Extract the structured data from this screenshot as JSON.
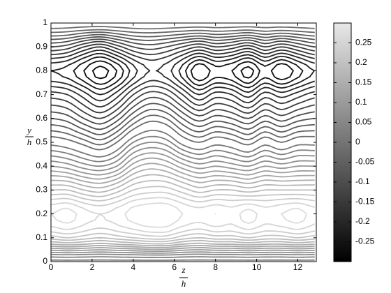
{
  "chart_data": {
    "type": "contour",
    "xlabel": {
      "top": "z",
      "bottom": "h"
    },
    "ylabel": {
      "top": "y",
      "bottom": "h"
    },
    "xlim": [
      0,
      12.9
    ],
    "ylim": [
      0,
      1
    ],
    "xticks": [
      0,
      2,
      4,
      6,
      8,
      10,
      12
    ],
    "yticks": [
      0,
      0.1,
      0.2,
      0.3,
      0.4,
      0.5,
      0.6,
      0.7,
      0.8,
      0.9,
      1
    ],
    "clim": [
      -0.3,
      0.3
    ],
    "cticks": [
      -0.25,
      -0.2,
      -0.15,
      -0.1,
      -0.05,
      0,
      0.05,
      0.1,
      0.15,
      0.2,
      0.25
    ],
    "colormap": [
      "#000000",
      "#e8e8e8"
    ],
    "levels": [
      -0.28,
      -0.26,
      -0.24,
      -0.22,
      -0.2,
      -0.18,
      -0.16,
      -0.14,
      -0.12,
      -0.1,
      -0.08,
      -0.06,
      -0.04,
      -0.02,
      0.01,
      0.03,
      0.05,
      0.07,
      0.09,
      0.11,
      0.13,
      0.15,
      0.17,
      0.19,
      0.21,
      0.23,
      0.25,
      0.27
    ],
    "x": [
      0,
      0.8,
      1.6,
      2.4,
      3.2,
      4.0,
      4.8,
      5.6,
      6.4,
      7.2,
      8.0,
      8.8,
      9.6,
      10.4,
      11.2,
      12.0,
      12.8
    ],
    "y": [
      0,
      0.1,
      0.2,
      0.3,
      0.4,
      0.5,
      0.6,
      0.7,
      0.8,
      0.9,
      1
    ],
    "z": [
      [
        0,
        0,
        0,
        0,
        0,
        0,
        0,
        0,
        0,
        0,
        0,
        0,
        0,
        0,
        0,
        0,
        0
      ],
      [
        0.2,
        0.21,
        0.2,
        0.19,
        0.2,
        0.21,
        0.22,
        0.22,
        0.2,
        0.19,
        0.2,
        0.2,
        0.21,
        0.2,
        0.2,
        0.21,
        0.2
      ],
      [
        0.27,
        0.28,
        0.26,
        0.25,
        0.26,
        0.28,
        0.29,
        0.29,
        0.27,
        0.26,
        0.27,
        0.26,
        0.28,
        0.26,
        0.27,
        0.28,
        0.26
      ],
      [
        0.19,
        0.19,
        0.17,
        0.16,
        0.18,
        0.21,
        0.22,
        0.22,
        0.2,
        0.18,
        0.19,
        0.19,
        0.18,
        0.19,
        0.19,
        0.19,
        0.19
      ],
      [
        0.09,
        0.08,
        0.06,
        0.05,
        0.07,
        0.12,
        0.14,
        0.13,
        0.1,
        0.08,
        0.09,
        0.08,
        0.07,
        0.09,
        0.08,
        0.09,
        0.09
      ],
      [
        0,
        -0.01,
        -0.03,
        -0.05,
        -0.02,
        0.03,
        0.05,
        0.04,
        0,
        -0.02,
        0,
        -0.01,
        -0.03,
        0,
        -0.02,
        0,
        0
      ],
      [
        -0.08,
        -0.09,
        -0.12,
        -0.14,
        -0.11,
        -0.06,
        -0.03,
        -0.04,
        -0.08,
        -0.11,
        -0.09,
        -0.1,
        -0.12,
        -0.09,
        -0.11,
        -0.09,
        -0.08
      ],
      [
        -0.15,
        -0.16,
        -0.19,
        -0.22,
        -0.19,
        -0.14,
        -0.11,
        -0.12,
        -0.16,
        -0.2,
        -0.17,
        -0.18,
        -0.21,
        -0.17,
        -0.19,
        -0.17,
        -0.15
      ],
      [
        -0.22,
        -0.23,
        -0.26,
        -0.29,
        -0.26,
        -0.21,
        -0.18,
        -0.19,
        -0.23,
        -0.28,
        -0.25,
        -0.26,
        -0.29,
        -0.25,
        -0.28,
        -0.25,
        -0.22
      ],
      [
        -0.12,
        -0.13,
        -0.16,
        -0.18,
        -0.15,
        -0.12,
        -0.11,
        -0.12,
        -0.14,
        -0.16,
        -0.14,
        -0.15,
        -0.17,
        -0.14,
        -0.16,
        -0.14,
        -0.12
      ],
      [
        0,
        0,
        0,
        0,
        0,
        0,
        0,
        0,
        0,
        0,
        0,
        0,
        0,
        0,
        0,
        0,
        0
      ]
    ]
  }
}
